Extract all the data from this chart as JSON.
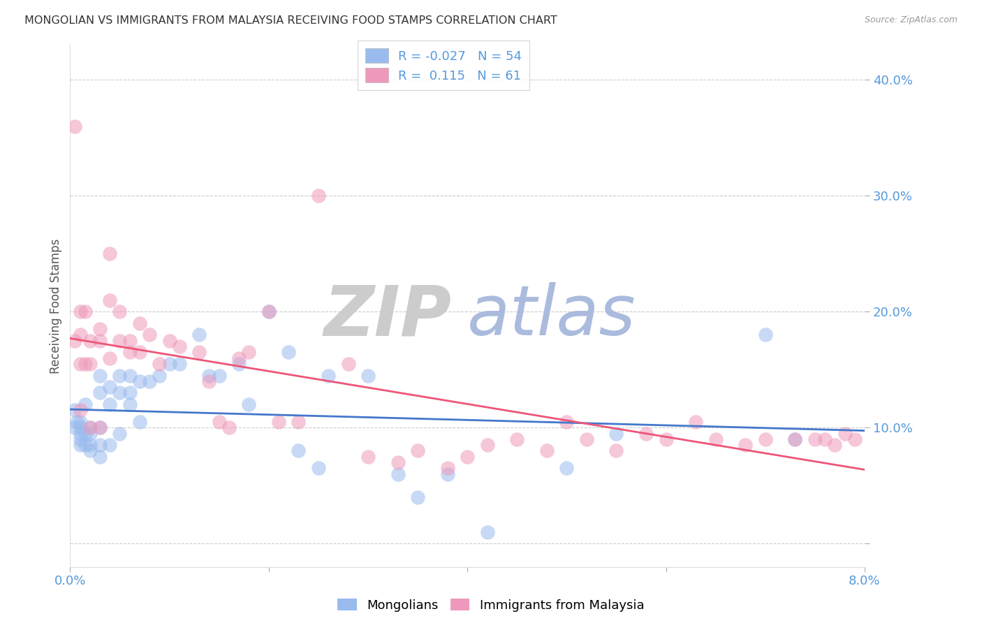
{
  "title": "MONGOLIAN VS IMMIGRANTS FROM MALAYSIA RECEIVING FOOD STAMPS CORRELATION CHART",
  "source": "Source: ZipAtlas.com",
  "ylabel": "Receiving Food Stamps",
  "watermark_zip": "ZIP",
  "watermark_atlas": "atlas",
  "xlim": [
    0.0,
    0.08
  ],
  "ylim": [
    -0.02,
    0.43
  ],
  "yticks": [
    0.0,
    0.1,
    0.2,
    0.3,
    0.4
  ],
  "ytick_labels": [
    "",
    "10.0%",
    "20.0%",
    "30.0%",
    "40.0%"
  ],
  "xticks": [
    0.0,
    0.02,
    0.04,
    0.06,
    0.08
  ],
  "xtick_labels": [
    "0.0%",
    "",
    "",
    "",
    "8.0%"
  ],
  "color_mongolian": "#99BBEE",
  "color_malaysia": "#EE99BB",
  "color_trendline_mongolian": "#4477CC",
  "color_trendline_malaysia": "#EE5577",
  "color_axis_labels": "#5599DD",
  "color_title": "#333333",
  "color_watermark_zip": "#CCCCCC",
  "color_watermark_atlas": "#AABBDD",
  "background_color": "#FFFFFF",
  "mongolian_x": [
    0.0005,
    0.0005,
    0.0007,
    0.001,
    0.001,
    0.001,
    0.001,
    0.001,
    0.0015,
    0.0015,
    0.0015,
    0.002,
    0.002,
    0.002,
    0.002,
    0.003,
    0.003,
    0.003,
    0.003,
    0.003,
    0.004,
    0.004,
    0.004,
    0.005,
    0.005,
    0.005,
    0.006,
    0.006,
    0.006,
    0.007,
    0.007,
    0.008,
    0.009,
    0.01,
    0.011,
    0.013,
    0.014,
    0.015,
    0.017,
    0.018,
    0.02,
    0.022,
    0.023,
    0.025,
    0.026,
    0.03,
    0.033,
    0.035,
    0.038,
    0.042,
    0.05,
    0.055,
    0.07,
    0.073
  ],
  "mongolian_y": [
    0.115,
    0.1,
    0.105,
    0.095,
    0.1,
    0.105,
    0.09,
    0.085,
    0.12,
    0.095,
    0.085,
    0.1,
    0.085,
    0.08,
    0.095,
    0.145,
    0.13,
    0.1,
    0.085,
    0.075,
    0.135,
    0.12,
    0.085,
    0.145,
    0.13,
    0.095,
    0.145,
    0.13,
    0.12,
    0.14,
    0.105,
    0.14,
    0.145,
    0.155,
    0.155,
    0.18,
    0.145,
    0.145,
    0.155,
    0.12,
    0.2,
    0.165,
    0.08,
    0.065,
    0.145,
    0.145,
    0.06,
    0.04,
    0.06,
    0.01,
    0.065,
    0.095,
    0.18,
    0.09
  ],
  "malaysia_x": [
    0.0005,
    0.0005,
    0.001,
    0.001,
    0.001,
    0.001,
    0.0015,
    0.0015,
    0.002,
    0.002,
    0.002,
    0.003,
    0.003,
    0.003,
    0.004,
    0.004,
    0.004,
    0.005,
    0.005,
    0.006,
    0.006,
    0.007,
    0.007,
    0.008,
    0.009,
    0.01,
    0.011,
    0.013,
    0.014,
    0.015,
    0.016,
    0.017,
    0.018,
    0.02,
    0.021,
    0.023,
    0.025,
    0.028,
    0.03,
    0.033,
    0.035,
    0.038,
    0.04,
    0.042,
    0.045,
    0.048,
    0.05,
    0.052,
    0.055,
    0.058,
    0.06,
    0.063,
    0.065,
    0.068,
    0.07,
    0.073,
    0.075,
    0.076,
    0.077,
    0.078,
    0.079
  ],
  "malaysia_y": [
    0.36,
    0.175,
    0.2,
    0.18,
    0.155,
    0.115,
    0.2,
    0.155,
    0.175,
    0.155,
    0.1,
    0.185,
    0.175,
    0.1,
    0.25,
    0.21,
    0.16,
    0.2,
    0.175,
    0.175,
    0.165,
    0.19,
    0.165,
    0.18,
    0.155,
    0.175,
    0.17,
    0.165,
    0.14,
    0.105,
    0.1,
    0.16,
    0.165,
    0.2,
    0.105,
    0.105,
    0.3,
    0.155,
    0.075,
    0.07,
    0.08,
    0.065,
    0.075,
    0.085,
    0.09,
    0.08,
    0.105,
    0.09,
    0.08,
    0.095,
    0.09,
    0.105,
    0.09,
    0.085,
    0.09,
    0.09,
    0.09,
    0.09,
    0.085,
    0.095,
    0.09
  ]
}
